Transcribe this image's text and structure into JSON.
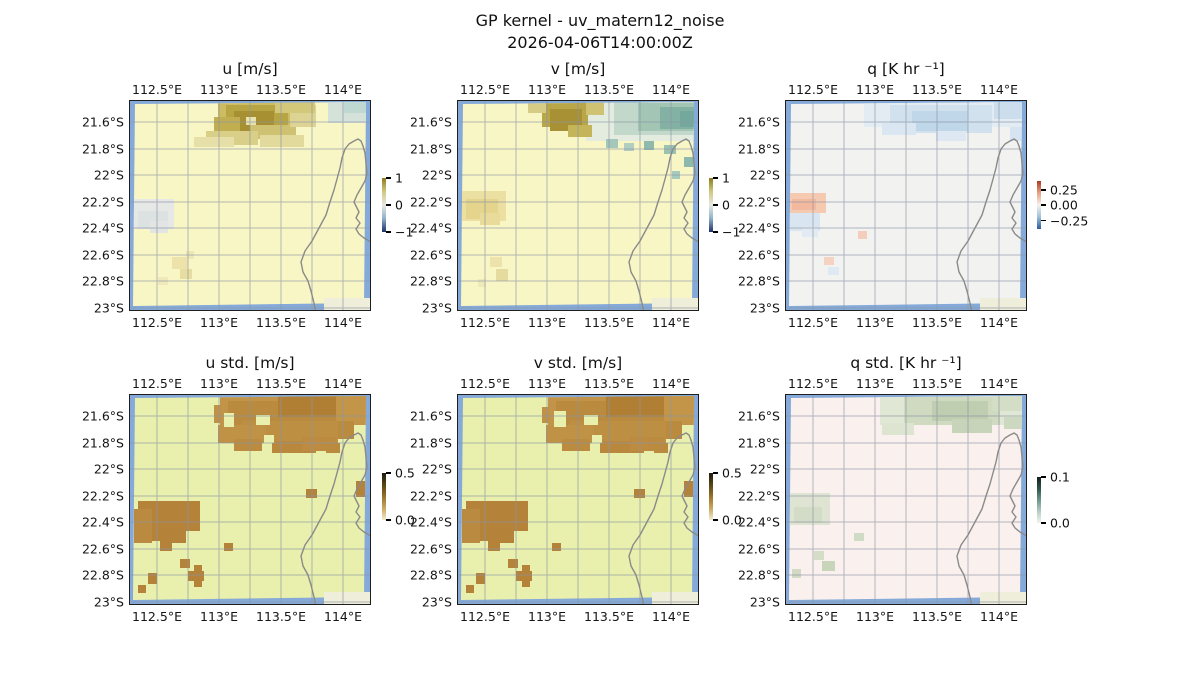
{
  "figure": {
    "title_line1": "GP kernel - uv_matern12_noise",
    "title_line2": "2026-04-06T14:00:00Z"
  },
  "chart_data": {
    "type": "heatmap",
    "x_ticks": [
      "112.5°E",
      "113°E",
      "113.5°E",
      "114°E"
    ],
    "y_ticks": [
      "21.6°S",
      "21.8°S",
      "22°S",
      "22.2°S",
      "22.4°S",
      "22.6°S",
      "22.8°S",
      "23°S"
    ],
    "colors": {
      "ocean": "#85aad9",
      "land_corner": "#efeeda",
      "coastline": "#8a8a8a",
      "gridline": "#8b95a5"
    },
    "coastline_points": [
      [
        186,
        212
      ],
      [
        184,
        202
      ],
      [
        181,
        190
      ],
      [
        178,
        180
      ],
      [
        173,
        171
      ],
      [
        171,
        161
      ],
      [
        175,
        150
      ],
      [
        182,
        140
      ],
      [
        189,
        127
      ],
      [
        196,
        114
      ],
      [
        200,
        101
      ],
      [
        204,
        89
      ],
      [
        207,
        78
      ],
      [
        210,
        67
      ],
      [
        212,
        57
      ],
      [
        215,
        48
      ],
      [
        219,
        43
      ],
      [
        224,
        40
      ],
      [
        228,
        38
      ],
      [
        231,
        40
      ],
      [
        233,
        45
      ],
      [
        235,
        52
      ],
      [
        236,
        62
      ],
      [
        237,
        72
      ],
      [
        235,
        80
      ],
      [
        231,
        87
      ],
      [
        227,
        94
      ],
      [
        224,
        101
      ],
      [
        227,
        107
      ],
      [
        229,
        111
      ],
      [
        226,
        117
      ],
      [
        230,
        122
      ],
      [
        226,
        128
      ],
      [
        229,
        133
      ],
      [
        234,
        137
      ],
      [
        241,
        141
      ]
    ],
    "panels": [
      {
        "id": "u",
        "title": "u [m/s]",
        "bg": "#f9f6c5",
        "colorbar": {
          "ticks": [
            "1",
            "0",
            "−1"
          ],
          "tick_pos": [
            0,
            50,
            100
          ],
          "stops": [
            "#8c7a1e",
            "#cfc87e",
            "#e8e8e2",
            "#8fb0c8",
            "#1e3268"
          ]
        },
        "patches": [
          [
            88,
            0,
            78,
            24,
            "#cdbc62"
          ],
          [
            96,
            4,
            62,
            30,
            "#b7a544"
          ],
          [
            104,
            10,
            40,
            24,
            "#a79031"
          ],
          [
            84,
            16,
            26,
            22,
            "#c0ae50"
          ],
          [
            120,
            24,
            46,
            14,
            "#cfc172"
          ],
          [
            76,
            30,
            52,
            14,
            "#d9cf88"
          ],
          [
            64,
            36,
            40,
            10,
            "#e7dfa8"
          ],
          [
            130,
            34,
            44,
            12,
            "#e2d99c"
          ],
          [
            160,
            4,
            26,
            22,
            "#ddd494"
          ],
          [
            145,
            0,
            40,
            12,
            "#d3c77a"
          ],
          [
            116,
            16,
            10,
            8,
            "#e8e2ac"
          ],
          [
            198,
            0,
            42,
            22,
            "#d4e2da"
          ],
          [
            214,
            0,
            26,
            12,
            "#c0d8d2"
          ],
          [
            2,
            98,
            42,
            30,
            "#e6e8e6"
          ],
          [
            8,
            110,
            30,
            18,
            "#dce1e1"
          ],
          [
            20,
            120,
            18,
            12,
            "#e2e5e3"
          ],
          [
            42,
            156,
            16,
            12,
            "#ece2aa"
          ],
          [
            50,
            168,
            12,
            10,
            "#e7dda0"
          ],
          [
            28,
            176,
            10,
            8,
            "#efe8ba"
          ],
          [
            56,
            150,
            8,
            8,
            "#efe7b4"
          ]
        ]
      },
      {
        "id": "v",
        "title": "v [m/s]",
        "bg": "#f9f6c5",
        "colorbar": {
          "ticks": [
            "1",
            "0",
            "−1"
          ],
          "tick_pos": [
            0,
            50,
            100
          ],
          "stops": [
            "#8c7a1e",
            "#cfc87e",
            "#e8e8e2",
            "#8fb0c8",
            "#1e3268"
          ]
        },
        "patches": [
          [
            128,
            0,
            112,
            40,
            "#e3ecdf"
          ],
          [
            156,
            0,
            84,
            34,
            "#c2d8cb"
          ],
          [
            180,
            2,
            60,
            28,
            "#a2c5b4"
          ],
          [
            202,
            6,
            38,
            22,
            "#83b1a3"
          ],
          [
            222,
            10,
            18,
            16,
            "#74a89c"
          ],
          [
            148,
            38,
            12,
            9,
            "#a3c7b8"
          ],
          [
            166,
            42,
            10,
            8,
            "#b2cec0"
          ],
          [
            186,
            40,
            10,
            9,
            "#8fbaab"
          ],
          [
            206,
            44,
            12,
            9,
            "#9cc2b2"
          ],
          [
            226,
            56,
            12,
            10,
            "#8db8ac"
          ],
          [
            214,
            70,
            8,
            8,
            "#a8cabc"
          ],
          [
            84,
            0,
            46,
            26,
            "#b9a648"
          ],
          [
            92,
            8,
            32,
            22,
            "#a89134"
          ],
          [
            110,
            24,
            24,
            12,
            "#c4b45a"
          ],
          [
            70,
            0,
            18,
            12,
            "#d6cc86"
          ],
          [
            128,
            0,
            18,
            14,
            "#cfc273"
          ],
          [
            2,
            90,
            46,
            30,
            "#ebdfa2"
          ],
          [
            8,
            98,
            32,
            20,
            "#e4d48c"
          ],
          [
            22,
            112,
            20,
            12,
            "#e9dc9a"
          ],
          [
            32,
            156,
            12,
            10,
            "#ece2aa"
          ],
          [
            38,
            168,
            12,
            12,
            "#e6db9e"
          ],
          [
            20,
            178,
            8,
            8,
            "#efe8b8"
          ]
        ]
      },
      {
        "id": "q",
        "title": "q [K hr ⁻¹]",
        "bg": "#f2f2f0",
        "colorbar": {
          "ticks": [
            "0.25",
            "0.00",
            "−0.25"
          ],
          "tick_pos": [
            19,
            50,
            83
          ],
          "stops": [
            "#a93a22",
            "#e8a184",
            "#f6f2ee",
            "#9fc0dc",
            "#2e5a9c"
          ]
        },
        "patches": [
          [
            78,
            0,
            162,
            26,
            "#e4ecf3"
          ],
          [
            104,
            4,
            102,
            28,
            "#d2e1ee"
          ],
          [
            126,
            10,
            56,
            20,
            "#c0d7ea"
          ],
          [
            96,
            22,
            34,
            12,
            "#dae6f1"
          ],
          [
            208,
            0,
            32,
            18,
            "#ccdded"
          ],
          [
            224,
            26,
            16,
            14,
            "#d6e3f0"
          ],
          [
            150,
            30,
            30,
            10,
            "#dde8f2"
          ],
          [
            2,
            92,
            38,
            20,
            "#f6c9b1"
          ],
          [
            6,
            98,
            24,
            11,
            "#f2b99e"
          ],
          [
            2,
            112,
            32,
            18,
            "#d9e6f2"
          ],
          [
            16,
            126,
            16,
            10,
            "#e2ebf4"
          ],
          [
            72,
            130,
            9,
            8,
            "#f3cebc"
          ],
          [
            38,
            156,
            10,
            8,
            "#f5d3c3"
          ],
          [
            42,
            166,
            11,
            8,
            "#dfe9f3"
          ]
        ]
      },
      {
        "id": "u_std",
        "title": "u std. [m/s]",
        "bg": "#e9efad",
        "colorbar": {
          "ticks": [
            "0.5",
            "0.0"
          ],
          "tick_pos": [
            0,
            100
          ],
          "stops": [
            "#1f1910",
            "#564416",
            "#97722e",
            "#c9a85e",
            "#f2ecd4"
          ]
        },
        "patches": [
          [
            90,
            0,
            150,
            30,
            "#c29449"
          ],
          [
            98,
            6,
            126,
            38,
            "#ba8a3e"
          ],
          [
            112,
            26,
            96,
            22,
            "#bd8f43"
          ],
          [
            88,
            30,
            48,
            18,
            "#bf9246"
          ],
          [
            148,
            0,
            64,
            22,
            "#b17f33"
          ],
          [
            104,
            44,
            28,
            12,
            "#bb8c40"
          ],
          [
            142,
            46,
            44,
            12,
            "#b9883c"
          ],
          [
            172,
            42,
            34,
            14,
            "#bc8b3f"
          ],
          [
            206,
            0,
            34,
            26,
            "#c39549"
          ],
          [
            126,
            20,
            14,
            10,
            "#e9efad"
          ],
          [
            94,
            18,
            10,
            14,
            "#e9efad"
          ],
          [
            134,
            40,
            10,
            8,
            "#e9efad"
          ],
          [
            84,
            10,
            8,
            18,
            "#c09246"
          ],
          [
            196,
            48,
            14,
            10,
            "#ba8a3e"
          ],
          [
            8,
            106,
            62,
            30,
            "#b5823a"
          ],
          [
            18,
            128,
            36,
            18,
            "#b5823a"
          ],
          [
            4,
            114,
            18,
            34,
            "#ba8a40"
          ],
          [
            42,
            134,
            14,
            14,
            "#b5823a"
          ],
          [
            30,
            146,
            12,
            10,
            "#b5823a"
          ],
          [
            176,
            94,
            11,
            9,
            "#b5823a"
          ],
          [
            226,
            86,
            14,
            16,
            "#b5823a"
          ],
          [
            94,
            148,
            9,
            8,
            "#b5823a"
          ],
          [
            50,
            164,
            10,
            9,
            "#b5823a"
          ],
          [
            58,
            176,
            16,
            10,
            "#b5823a"
          ],
          [
            64,
            170,
            8,
            22,
            "#b5823a"
          ],
          [
            18,
            178,
            9,
            11,
            "#b5823a"
          ],
          [
            8,
            190,
            8,
            8,
            "#b5823a"
          ]
        ]
      },
      {
        "id": "v_std",
        "title": "v std. [m/s]",
        "bg": "#e9efad",
        "colorbar": {
          "ticks": [
            "0.5",
            "0.0"
          ],
          "tick_pos": [
            0,
            100
          ],
          "stops": [
            "#1f1910",
            "#564416",
            "#97722e",
            "#c9a85e",
            "#f2ecd4"
          ]
        },
        "patches": [
          [
            90,
            0,
            150,
            30,
            "#c29449"
          ],
          [
            98,
            6,
            126,
            38,
            "#ba8a3e"
          ],
          [
            112,
            26,
            96,
            22,
            "#bd8f43"
          ],
          [
            88,
            30,
            48,
            18,
            "#bf9246"
          ],
          [
            148,
            0,
            64,
            22,
            "#b17f33"
          ],
          [
            104,
            44,
            28,
            12,
            "#bb8c40"
          ],
          [
            142,
            46,
            44,
            12,
            "#b9883c"
          ],
          [
            172,
            42,
            34,
            14,
            "#bc8b3f"
          ],
          [
            206,
            0,
            34,
            26,
            "#c39549"
          ],
          [
            126,
            20,
            14,
            10,
            "#e9efad"
          ],
          [
            96,
            16,
            12,
            16,
            "#e9efad"
          ],
          [
            134,
            40,
            10,
            8,
            "#e9efad"
          ],
          [
            84,
            12,
            8,
            16,
            "#c09246"
          ],
          [
            196,
            48,
            14,
            10,
            "#ba8a3e"
          ],
          [
            8,
            106,
            62,
            30,
            "#b5823a"
          ],
          [
            18,
            128,
            36,
            18,
            "#b5823a"
          ],
          [
            4,
            114,
            18,
            34,
            "#ba8a40"
          ],
          [
            42,
            134,
            14,
            14,
            "#b5823a"
          ],
          [
            30,
            146,
            12,
            10,
            "#b5823a"
          ],
          [
            176,
            94,
            11,
            9,
            "#b5823a"
          ],
          [
            226,
            86,
            14,
            16,
            "#b5823a"
          ],
          [
            94,
            148,
            9,
            8,
            "#b5823a"
          ],
          [
            50,
            164,
            10,
            9,
            "#b5823a"
          ],
          [
            58,
            176,
            16,
            10,
            "#b5823a"
          ],
          [
            64,
            170,
            8,
            22,
            "#b5823a"
          ],
          [
            18,
            178,
            9,
            11,
            "#b5823a"
          ],
          [
            8,
            190,
            8,
            8,
            "#b5823a"
          ]
        ]
      },
      {
        "id": "q_std",
        "title": "q std. [K hr ⁻¹]",
        "bg": "#faf1ee",
        "colorbar": {
          "ticks": [
            "0.1",
            "0.0"
          ],
          "tick_pos": [
            0,
            100
          ],
          "stops": [
            "#101f1a",
            "#2e544a",
            "#6e968a",
            "#b8cdc2",
            "#f2f5ef"
          ]
        },
        "patches": [
          [
            94,
            0,
            146,
            30,
            "#e0e7d4"
          ],
          [
            118,
            2,
            96,
            28,
            "#cfdac1"
          ],
          [
            146,
            6,
            56,
            20,
            "#bfceb0"
          ],
          [
            166,
            24,
            40,
            14,
            "#c8d4ba"
          ],
          [
            96,
            28,
            32,
            12,
            "#dde5d0"
          ],
          [
            218,
            22,
            22,
            12,
            "#ccd8c0"
          ],
          [
            206,
            0,
            34,
            16,
            "#d4ddc6"
          ],
          [
            2,
            98,
            42,
            32,
            "#dee3d2"
          ],
          [
            8,
            112,
            28,
            16,
            "#d3dcc7"
          ],
          [
            68,
            138,
            10,
            8,
            "#d0dbc5"
          ],
          [
            28,
            156,
            10,
            9,
            "#d5ddc9"
          ],
          [
            36,
            166,
            13,
            10,
            "#c9d5bb"
          ],
          [
            6,
            174,
            9,
            9,
            "#d2dac6"
          ]
        ]
      }
    ]
  }
}
